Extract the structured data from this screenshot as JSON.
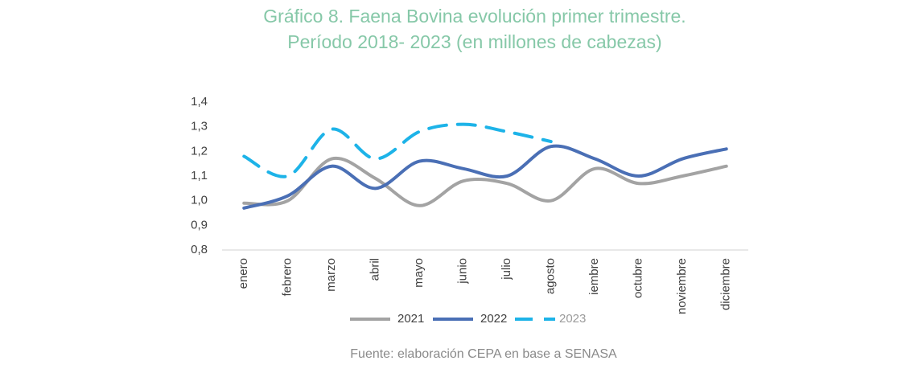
{
  "chart_data": {
    "type": "line",
    "title": "Gráfico 8. Faena Bovina evolución primer trimestre.",
    "subtitle": "Período 2018- 2023 (en millones de cabezas)",
    "source": "Fuente: elaboración CEPA en base a SENASA",
    "categories": [
      "enero",
      "febrero",
      "marzo",
      "abril",
      "mayo",
      "junio",
      "julio",
      "agosto",
      "iembre",
      "octubre",
      "noviembre",
      "diciembre"
    ],
    "series": [
      {
        "name": "2021",
        "color": "#a3a3a3",
        "dashed": false,
        "values": [
          0.99,
          1.0,
          1.17,
          1.09,
          0.98,
          1.08,
          1.07,
          1.0,
          1.13,
          1.07,
          1.1,
          1.14
        ]
      },
      {
        "name": "2022",
        "color": "#4a6fb5",
        "dashed": false,
        "values": [
          0.97,
          1.02,
          1.14,
          1.05,
          1.16,
          1.13,
          1.1,
          1.22,
          1.17,
          1.1,
          1.17,
          1.21
        ]
      },
      {
        "name": "2023",
        "color": "#1db3e8",
        "dashed": true,
        "values": [
          1.18,
          1.1,
          1.29,
          1.17,
          1.28,
          1.31,
          1.28,
          1.24,
          null,
          null,
          null,
          null
        ]
      }
    ],
    "ylim": [
      0.8,
      1.4
    ],
    "yticks": [
      {
        "value": 0.8,
        "label": "0,8"
      },
      {
        "value": 0.9,
        "label": "0,9"
      },
      {
        "value": 1.0,
        "label": "1,0"
      },
      {
        "value": 1.1,
        "label": "1,1"
      },
      {
        "value": 1.2,
        "label": "1,2"
      },
      {
        "value": 1.3,
        "label": "1,3"
      },
      {
        "value": 1.4,
        "label": "1,4"
      }
    ],
    "grid": false,
    "legend": "bottom"
  }
}
